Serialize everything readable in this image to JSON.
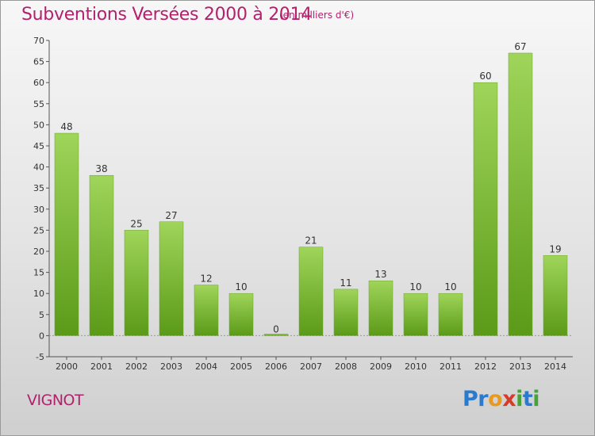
{
  "title": "Subventions Versées 2000 à 2014",
  "subtitle": "(en milliers d'€)",
  "commune": "VIGNOT",
  "logo": {
    "letters": [
      {
        "ch": "P",
        "color": "#2a7bd0"
      },
      {
        "ch": "r",
        "color": "#2a7bd0"
      },
      {
        "ch": "o",
        "color": "#e89a1e"
      },
      {
        "ch": "x",
        "color": "#d63a2a"
      },
      {
        "ch": "i",
        "color": "#46a33a"
      },
      {
        "ch": "t",
        "color": "#2a7bd0"
      },
      {
        "ch": "i",
        "color": "#46a33a"
      }
    ]
  },
  "chart_data": {
    "type": "bar",
    "title": "Subventions Versées 2000 à 2014",
    "subtitle": "(en milliers d'€)",
    "categories": [
      "2000",
      "2001",
      "2002",
      "2003",
      "2004",
      "2005",
      "2006",
      "2007",
      "2008",
      "2009",
      "2010",
      "2011",
      "2012",
      "2013",
      "2014"
    ],
    "values": [
      48,
      38,
      25,
      27,
      12,
      10,
      0,
      21,
      11,
      13,
      10,
      10,
      60,
      67,
      19
    ],
    "ylim": [
      -5,
      70
    ],
    "yticks": [
      -5,
      0,
      5,
      10,
      15,
      20,
      25,
      30,
      35,
      40,
      45,
      50,
      55,
      60,
      65,
      70
    ],
    "grid": false,
    "bar_color_top": "#9fd55a",
    "bar_color_bottom": "#5b9a18"
  }
}
